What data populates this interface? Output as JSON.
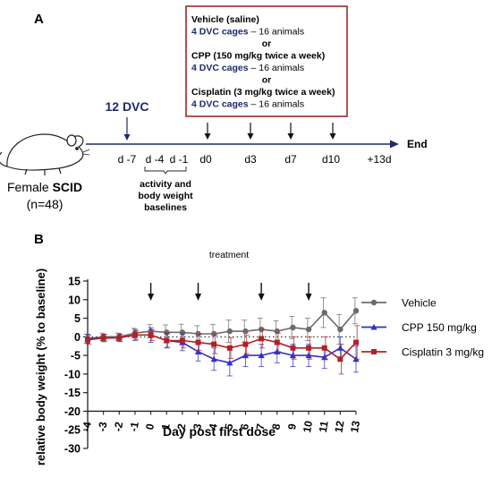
{
  "panel_a": {
    "panel_label": "A",
    "animal": {
      "prefix": "Female ",
      "strain": "SCID",
      "count": "(n=48)"
    },
    "dvc_label": "12 DVC",
    "timeline_ticks": [
      "d -7",
      "d -4",
      "d -1",
      "d0",
      "d3",
      "d7",
      "d10",
      "+13d"
    ],
    "end_label": "End",
    "baseline_note": [
      "activity and",
      "body weight",
      "baselines"
    ],
    "groups_box": [
      {
        "text": "Vehicle (saline)",
        "style": "black"
      },
      {
        "text": "4 DVC cages",
        "suffix": " – 16 animals",
        "style": "blue"
      },
      {
        "text": "or",
        "style": "center"
      },
      {
        "text": "CPP (150 mg/kg twice a week)",
        "style": "black"
      },
      {
        "text": "4 DVC cages",
        "suffix": " – 16 animals",
        "style": "blue"
      },
      {
        "text": "or",
        "style": "center"
      },
      {
        "text": "Cisplatin (3 mg/kg twice a week)",
        "style": "black"
      },
      {
        "text": "4 DVC cages",
        "suffix": " – 16 animals",
        "style": "blue"
      }
    ],
    "colors": {
      "box_border": "#9b2a2a",
      "dvc_blue": "#1f2a6b"
    }
  },
  "panel_b": {
    "panel_label": "B"
  },
  "chart_data": {
    "type": "line",
    "title": "treatment",
    "xlabel": "Day post first dose",
    "ylabel": "relative body weight (% to baseline)",
    "x": [
      -4,
      -3,
      -2,
      -1,
      0,
      1,
      2,
      3,
      4,
      5,
      6,
      7,
      8,
      9,
      10,
      11,
      12,
      13
    ],
    "xticks": [
      "-4",
      "-3",
      "-2",
      "-1",
      "0",
      "1",
      "2",
      "3",
      "4",
      "5",
      "6",
      "7",
      "8",
      "9",
      "10",
      "11",
      "12",
      "13"
    ],
    "xlim": [
      -4,
      13
    ],
    "ylim": [
      -30,
      15
    ],
    "yticks": [
      "15",
      "10",
      "5",
      "0",
      "-5",
      "-10",
      "-15",
      "-20",
      "-25",
      "-30"
    ],
    "treatment_days": [
      0,
      3,
      7,
      10
    ],
    "series": [
      {
        "name": "Vehicle",
        "color": "#6b6b6b",
        "marker": "circle",
        "values": [
          -0.5,
          0,
          0,
          1,
          1.5,
          1.2,
          1.2,
          0.8,
          0.8,
          1.5,
          1.5,
          2,
          1.5,
          2.5,
          2,
          6.5,
          2,
          7
        ],
        "errors": [
          1.2,
          1,
          1,
          1.3,
          1.8,
          2,
          2.2,
          2.2,
          2.5,
          3,
          3,
          3,
          2.8,
          3,
          3,
          4,
          4,
          3.5
        ]
      },
      {
        "name": "CPP 150 mg/kg",
        "color": "#3030c8",
        "marker": "triangle",
        "values": [
          -0.5,
          -0.3,
          -0.2,
          0.5,
          0.5,
          -1,
          -1.5,
          -4,
          -6,
          -7,
          -5,
          -5,
          -4,
          -5,
          -5,
          -5.5,
          -3,
          -6
        ],
        "errors": [
          1.2,
          1,
          1,
          1.5,
          2,
          2,
          2.2,
          2.5,
          3,
          3.5,
          3,
          3,
          3,
          3,
          3,
          3,
          3,
          3.5
        ]
      },
      {
        "name": "Cisplatin 3 mg/kg",
        "color": "#b22222",
        "marker": "square",
        "values": [
          -0.8,
          -0.3,
          -0.3,
          0.5,
          0.5,
          -1,
          -1,
          -1.5,
          -2,
          -3,
          -2,
          -0.5,
          -1.5,
          -3,
          -3,
          -3,
          -6,
          -1.5
        ],
        "errors": [
          1.2,
          1,
          1,
          1.2,
          1.5,
          1.8,
          2,
          2.2,
          2.5,
          2.8,
          2.5,
          2.5,
          2.5,
          3,
          3,
          3,
          4,
          4.5
        ]
      }
    ],
    "grid": false,
    "baseline_dotted": 0,
    "legend_position": "right"
  }
}
